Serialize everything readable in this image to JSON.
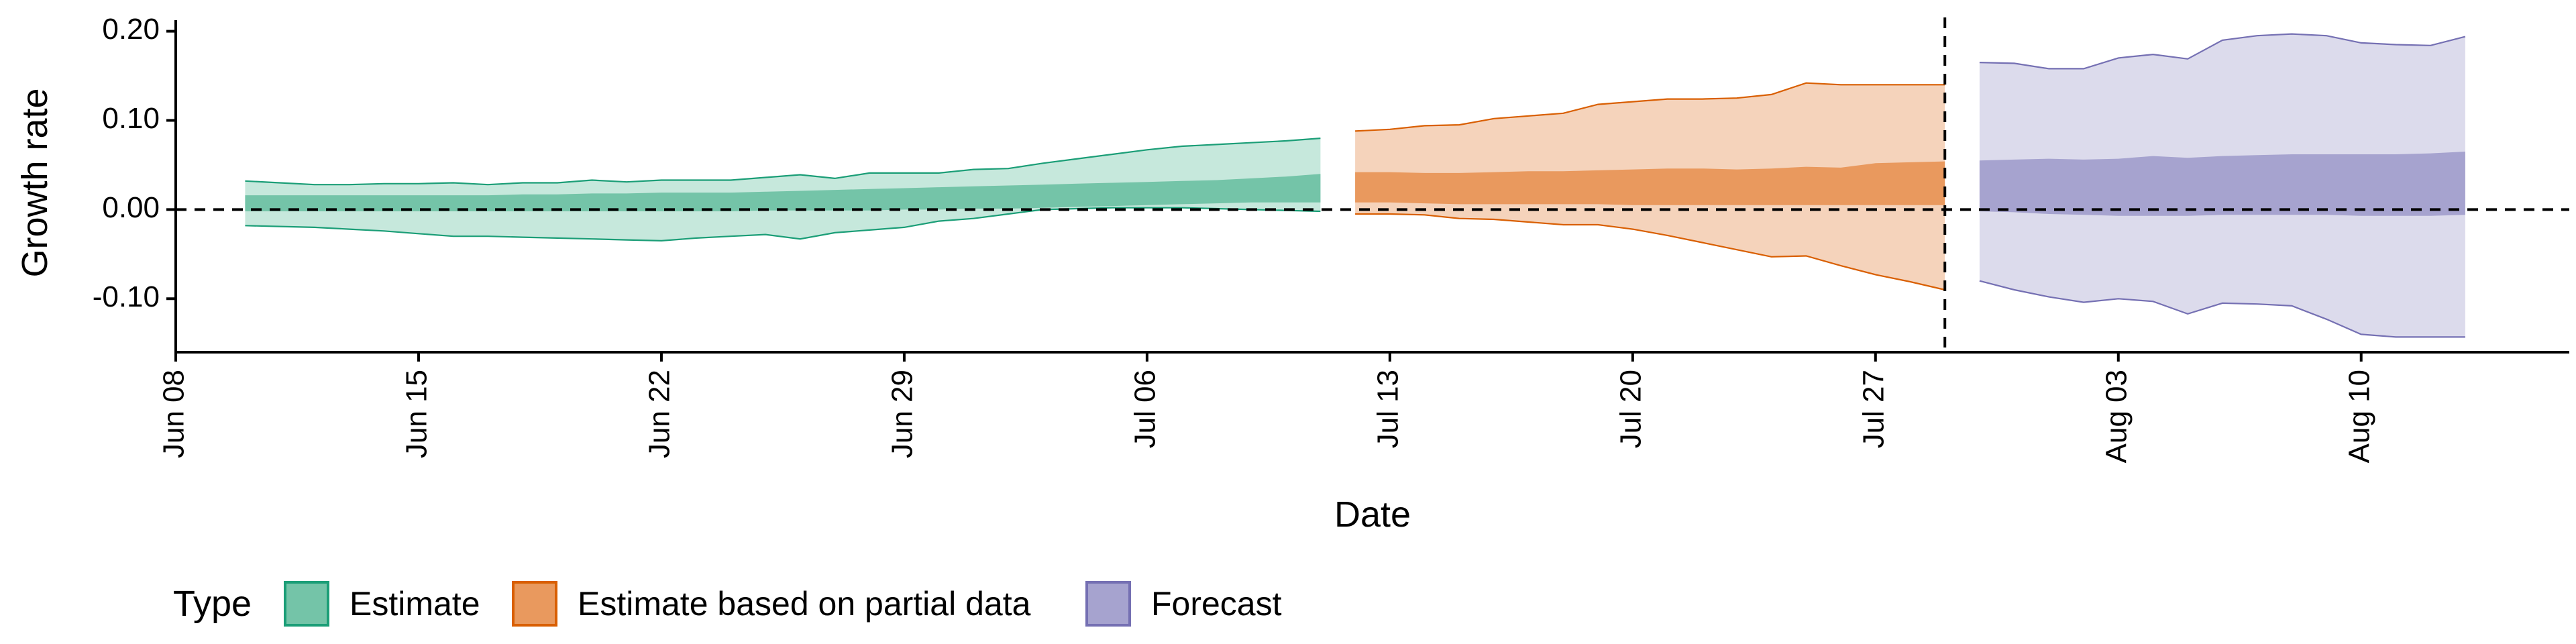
{
  "chart_data": {
    "type": "area",
    "xlabel": "Date",
    "ylabel": "Growth rate",
    "x_range": [
      "2020-06-08",
      "2020-08-16"
    ],
    "ylim": [
      -0.16,
      0.22
    ],
    "yticks": [
      0.2,
      0.1,
      0.0,
      -0.1
    ],
    "ytick_labels": [
      "0.20",
      "0.10",
      "0.00",
      "-0.10"
    ],
    "xticks": [
      "2020-06-08",
      "2020-06-15",
      "2020-06-22",
      "2020-06-29",
      "2020-07-06",
      "2020-07-13",
      "2020-07-20",
      "2020-07-27",
      "2020-08-03",
      "2020-08-10"
    ],
    "xtick_labels": [
      "Jun 08",
      "Jun 15",
      "Jun 22",
      "Jun 29",
      "Jul 06",
      "Jul 13",
      "Jul 20",
      "Jul 27",
      "Aug 03",
      "Aug 10"
    ],
    "grid": false,
    "reference_lines": [
      {
        "axis": "y",
        "value": 0,
        "style": "dashed"
      },
      {
        "axis": "x",
        "value": "2020-07-29",
        "style": "dashed"
      }
    ],
    "legend": {
      "title": "Type",
      "position": "bottom-left",
      "items": [
        {
          "label": "Estimate",
          "fill": "#74c4a8",
          "border": "#1b9e77"
        },
        {
          "label": "Estimate based on partial data",
          "fill": "#e9995e",
          "border": "#d95f02"
        },
        {
          "label": "Forecast",
          "fill": "#a6a3cf",
          "border": "#7570b3"
        }
      ]
    },
    "series": [
      {
        "name": "Estimate",
        "color": "#1b9e77",
        "light_color": "#c6e8dc",
        "dark_color": "#74c4a8",
        "dates": [
          "2020-06-10",
          "2020-06-11",
          "2020-06-12",
          "2020-06-13",
          "2020-06-14",
          "2020-06-15",
          "2020-06-16",
          "2020-06-17",
          "2020-06-18",
          "2020-06-19",
          "2020-06-20",
          "2020-06-21",
          "2020-06-22",
          "2020-06-23",
          "2020-06-24",
          "2020-06-25",
          "2020-06-26",
          "2020-06-27",
          "2020-06-28",
          "2020-06-29",
          "2020-06-30",
          "2020-07-01",
          "2020-07-02",
          "2020-07-03",
          "2020-07-04",
          "2020-07-05",
          "2020-07-06",
          "2020-07-07",
          "2020-07-08",
          "2020-07-09",
          "2020-07-10",
          "2020-07-11"
        ],
        "upper_90": [
          0.032,
          0.03,
          0.028,
          0.028,
          0.029,
          0.029,
          0.03,
          0.028,
          0.03,
          0.03,
          0.033,
          0.031,
          0.033,
          0.033,
          0.033,
          0.036,
          0.039,
          0.035,
          0.041,
          0.041,
          0.041,
          0.045,
          0.046,
          0.052,
          0.057,
          0.062,
          0.067,
          0.071,
          0.073,
          0.075,
          0.077,
          0.08
        ],
        "upper_50": [
          0.016,
          0.016,
          0.016,
          0.016,
          0.016,
          0.016,
          0.016,
          0.016,
          0.017,
          0.017,
          0.018,
          0.018,
          0.019,
          0.019,
          0.019,
          0.02,
          0.021,
          0.022,
          0.023,
          0.024,
          0.025,
          0.026,
          0.027,
          0.028,
          0.029,
          0.03,
          0.031,
          0.032,
          0.033,
          0.035,
          0.037,
          0.04
        ],
        "lower_50": [
          -0.002,
          -0.002,
          -0.002,
          -0.002,
          -0.002,
          -0.002,
          -0.002,
          -0.002,
          -0.002,
          -0.002,
          -0.002,
          -0.002,
          -0.002,
          -0.002,
          -0.002,
          -0.001,
          -0.001,
          -0.001,
          -0.001,
          0.0,
          0.0,
          0.001,
          0.001,
          0.002,
          0.003,
          0.004,
          0.005,
          0.006,
          0.007,
          0.008,
          0.008,
          0.008
        ],
        "lower_90": [
          -0.018,
          -0.019,
          -0.02,
          -0.022,
          -0.024,
          -0.027,
          -0.03,
          -0.03,
          -0.031,
          -0.032,
          -0.033,
          -0.034,
          -0.035,
          -0.032,
          -0.03,
          -0.028,
          -0.033,
          -0.026,
          -0.023,
          -0.02,
          -0.013,
          -0.01,
          -0.005,
          0.0,
          0.001,
          0.002,
          0.002,
          0.002,
          0.001,
          0.0,
          -0.001,
          -0.002
        ]
      },
      {
        "name": "Estimate based on partial data",
        "color": "#d95f02",
        "light_color": "#f5d3bb",
        "dark_color": "#e9995e",
        "dates": [
          "2020-07-12",
          "2020-07-13",
          "2020-07-14",
          "2020-07-15",
          "2020-07-16",
          "2020-07-17",
          "2020-07-18",
          "2020-07-19",
          "2020-07-20",
          "2020-07-21",
          "2020-07-22",
          "2020-07-23",
          "2020-07-24",
          "2020-07-25",
          "2020-07-26",
          "2020-07-27",
          "2020-07-28",
          "2020-07-29"
        ],
        "upper_90": [
          0.088,
          0.09,
          0.094,
          0.095,
          0.102,
          0.105,
          0.108,
          0.118,
          0.121,
          0.124,
          0.124,
          0.125,
          0.129,
          0.142,
          0.14,
          0.14,
          0.14,
          0.14
        ],
        "upper_50": [
          0.042,
          0.042,
          0.041,
          0.041,
          0.042,
          0.043,
          0.043,
          0.044,
          0.045,
          0.046,
          0.046,
          0.045,
          0.046,
          0.048,
          0.047,
          0.052,
          0.053,
          0.054
        ],
        "lower_50": [
          0.008,
          0.008,
          0.007,
          0.006,
          0.006,
          0.006,
          0.006,
          0.006,
          0.005,
          0.005,
          0.005,
          0.005,
          0.005,
          0.005,
          0.005,
          0.005,
          0.005,
          0.005
        ],
        "lower_90": [
          -0.005,
          -0.005,
          -0.006,
          -0.01,
          -0.011,
          -0.014,
          -0.017,
          -0.017,
          -0.022,
          -0.029,
          -0.037,
          -0.045,
          -0.053,
          -0.052,
          -0.063,
          -0.073,
          -0.081,
          -0.09
        ]
      },
      {
        "name": "Forecast",
        "color": "#7570b3",
        "light_color": "#dcdbec",
        "dark_color": "#a6a3cf",
        "dates": [
          "2020-07-30",
          "2020-07-31",
          "2020-08-01",
          "2020-08-02",
          "2020-08-03",
          "2020-08-04",
          "2020-08-05",
          "2020-08-06",
          "2020-08-07",
          "2020-08-08",
          "2020-08-09",
          "2020-08-10",
          "2020-08-11",
          "2020-08-12",
          "2020-08-13"
        ],
        "upper_90": [
          0.165,
          0.164,
          0.158,
          0.158,
          0.17,
          0.174,
          0.169,
          0.19,
          0.195,
          0.197,
          0.195,
          0.187,
          0.185,
          0.184,
          0.194
        ],
        "upper_50": [
          0.055,
          0.056,
          0.057,
          0.056,
          0.057,
          0.06,
          0.058,
          0.06,
          0.061,
          0.062,
          0.062,
          0.062,
          0.062,
          0.063,
          0.065
        ],
        "lower_50": [
          -0.002,
          -0.003,
          -0.005,
          -0.006,
          -0.007,
          -0.007,
          -0.007,
          -0.006,
          -0.006,
          -0.006,
          -0.006,
          -0.007,
          -0.007,
          -0.007,
          -0.006
        ],
        "lower_90": [
          -0.08,
          -0.09,
          -0.098,
          -0.104,
          -0.1,
          -0.103,
          -0.117,
          -0.105,
          -0.106,
          -0.108,
          -0.123,
          -0.14,
          -0.143,
          -0.143,
          -0.143
        ]
      }
    ]
  }
}
